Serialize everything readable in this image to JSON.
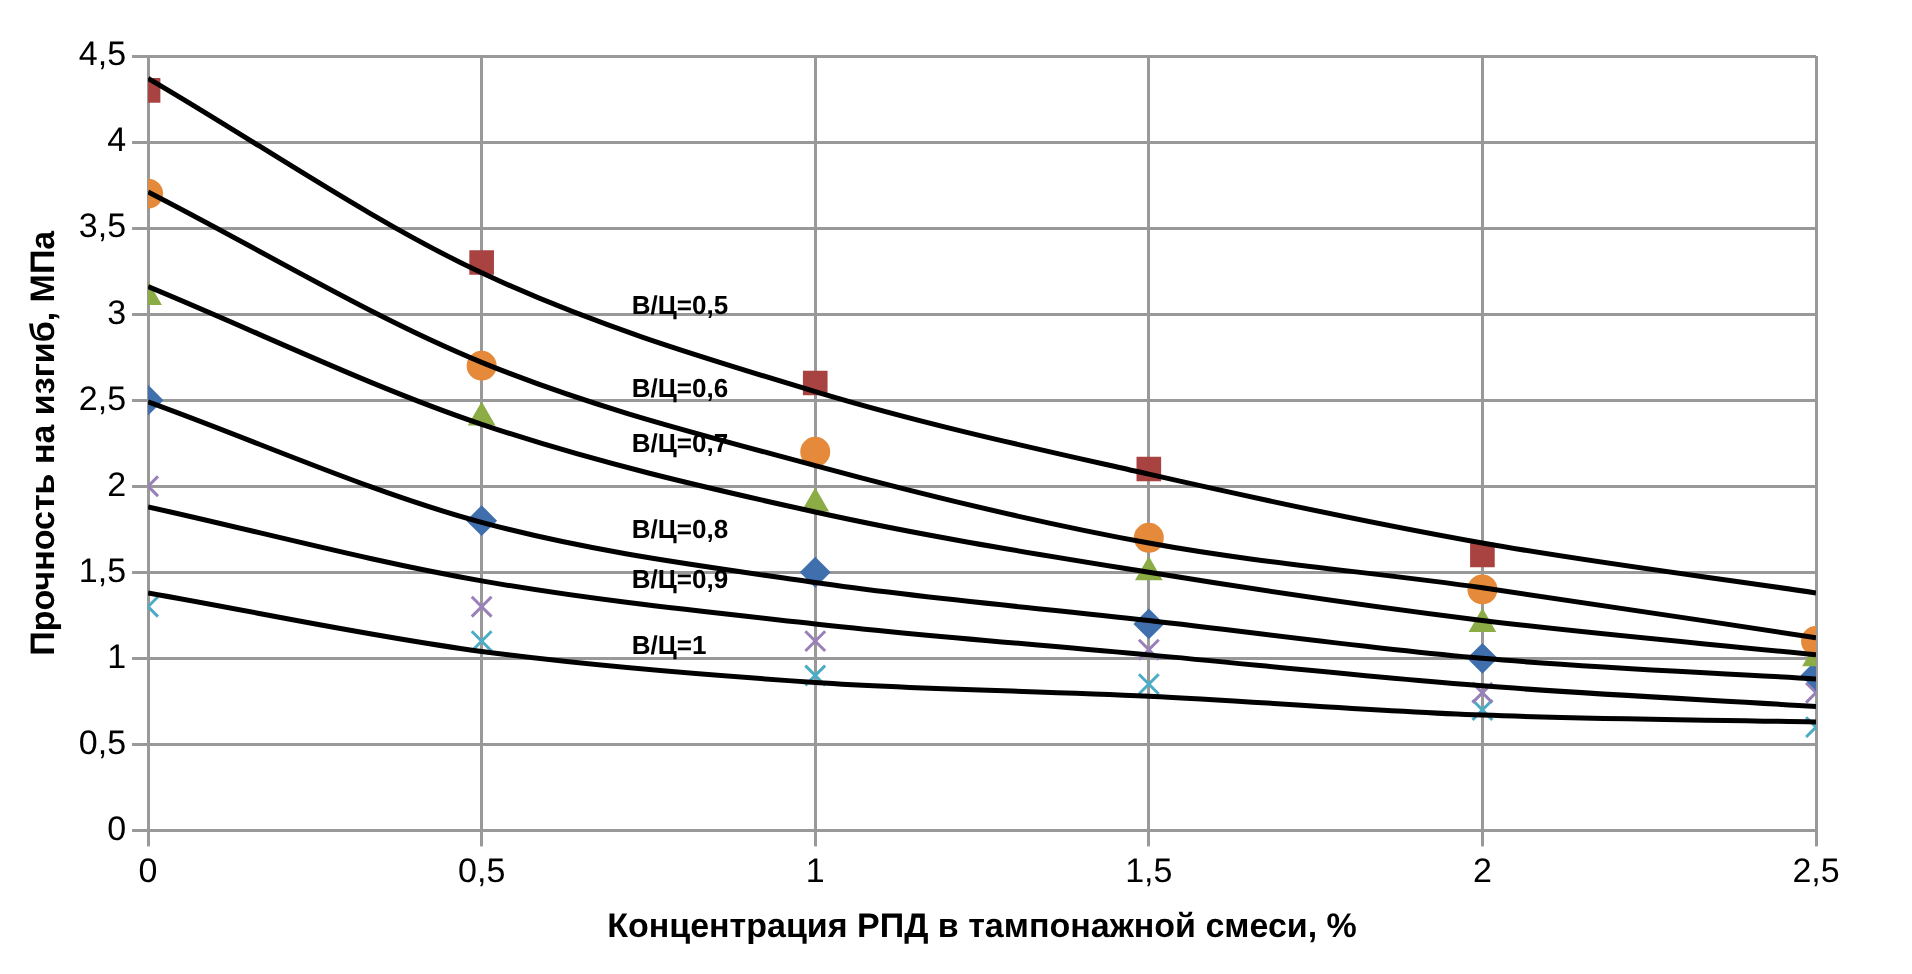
{
  "chart_data": {
    "type": "scatter",
    "xlabel": "Концентрация РПД в тампонажной смеси, %",
    "ylabel": "Прочность на изгиб, МПа",
    "x": [
      0,
      0.5,
      1,
      1.5,
      2,
      2.5
    ],
    "series": [
      {
        "color": "#a84342",
        "marker": "square",
        "values": [
          4.3,
          3.3,
          2.6,
          2.1,
          1.6,
          null
        ]
      },
      {
        "color": "#e58a3a",
        "marker": "circle",
        "values": [
          3.7,
          2.7,
          2.2,
          1.7,
          1.4,
          1.1
        ]
      },
      {
        "color": "#8cac46",
        "marker": "triangle",
        "values": [
          3.1,
          2.4,
          1.9,
          1.5,
          1.2,
          1.0
        ]
      },
      {
        "color": "#3f6fad",
        "marker": "diamond",
        "values": [
          2.5,
          1.8,
          1.5,
          1.2,
          1.0,
          0.9
        ]
      },
      {
        "color": "#9a80b8",
        "marker": "cross",
        "values": [
          2.0,
          1.3,
          1.1,
          1.05,
          0.8,
          0.8
        ]
      },
      {
        "color": "#4bacc6",
        "marker": "cross",
        "values": [
          1.3,
          1.1,
          0.9,
          0.85,
          0.7,
          0.6
        ]
      },
      {
        "type": "line",
        "color": "#000000",
        "marker": "none",
        "x": [
          0,
          0.5,
          1,
          1.5,
          2,
          2.5
        ],
        "values": [
          4.37,
          3.24,
          2.55,
          2.07,
          1.67,
          1.38
        ]
      },
      {
        "type": "line",
        "color": "#000000",
        "marker": "none",
        "x": [
          0,
          0.5,
          1,
          1.5,
          2,
          2.5
        ],
        "values": [
          3.71,
          2.72,
          2.12,
          1.67,
          1.41,
          1.12
        ]
      },
      {
        "type": "line",
        "color": "#000000",
        "marker": "none",
        "x": [
          0,
          0.5,
          1,
          1.5,
          2,
          2.5
        ],
        "values": [
          3.16,
          2.36,
          1.85,
          1.5,
          1.22,
          1.02
        ]
      },
      {
        "type": "line",
        "color": "#000000",
        "marker": "none",
        "x": [
          0,
          0.5,
          1,
          1.5,
          2,
          2.5
        ],
        "values": [
          2.49,
          1.79,
          1.44,
          1.22,
          1.0,
          0.88
        ]
      },
      {
        "type": "line",
        "color": "#000000",
        "marker": "none",
        "x": [
          0,
          0.5,
          1,
          1.5,
          2,
          2.5
        ],
        "values": [
          1.88,
          1.45,
          1.2,
          1.02,
          0.84,
          0.72
        ]
      },
      {
        "type": "line",
        "color": "#000000",
        "marker": "none",
        "x": [
          0,
          0.5,
          1,
          1.5,
          2,
          2.5
        ],
        "values": [
          1.38,
          1.04,
          0.86,
          0.78,
          0.67,
          0.63
        ]
      }
    ],
    "annotations": [
      "В/Ц=0,5",
      "В/Ц=0,6",
      "В/Ц=0,7",
      "В/Ц=0,8",
      "В/Ц=0,9",
      "В/Ц=1"
    ],
    "xlim": [
      0,
      2.5
    ],
    "xticks": [
      0,
      {
        "value": 0.5,
        "label": "0,5"
      },
      1,
      {
        "value": 1.5,
        "label": "1,5"
      },
      2,
      {
        "value": 2.5,
        "label": "2,5"
      }
    ],
    "ylim": [
      0,
      4.5
    ],
    "yticks": [
      0,
      {
        "value": 0.5,
        "label": "0,5"
      },
      1,
      {
        "value": 1.5,
        "label": "1,5"
      },
      2,
      {
        "value": 2.5,
        "label": "2,5"
      },
      3,
      {
        "value": 3.5,
        "label": "3,5"
      },
      4,
      {
        "value": 4.5,
        "label": "4,5"
      }
    ],
    "grid": true,
    "legend": false
  }
}
